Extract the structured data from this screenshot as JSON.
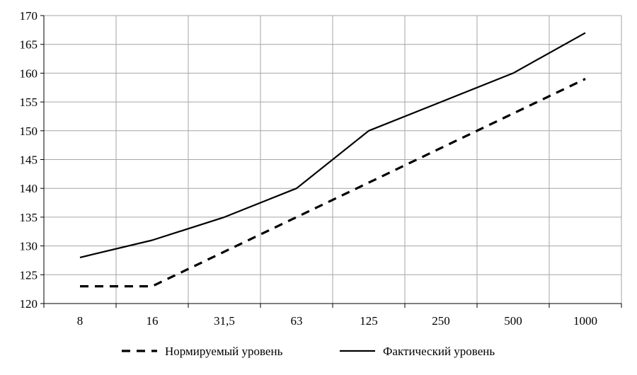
{
  "chart_data": {
    "type": "line",
    "categories": [
      "8",
      "16",
      "31,5",
      "63",
      "125",
      "250",
      "500",
      "1000"
    ],
    "ylim": [
      120,
      170
    ],
    "yticks": [
      120,
      125,
      130,
      135,
      140,
      145,
      150,
      155,
      160,
      165,
      170
    ],
    "grid": true,
    "legend_position": "bottom-center",
    "series": [
      {
        "name": "Нормируемый уровень",
        "style": "dashed",
        "color": "#000000",
        "values": [
          123,
          123,
          129,
          135,
          141,
          147,
          153,
          159
        ]
      },
      {
        "name": "Фактический уровень",
        "style": "solid",
        "color": "#000000",
        "values": [
          128,
          131,
          135,
          140,
          150,
          155,
          160,
          167
        ]
      }
    ]
  }
}
